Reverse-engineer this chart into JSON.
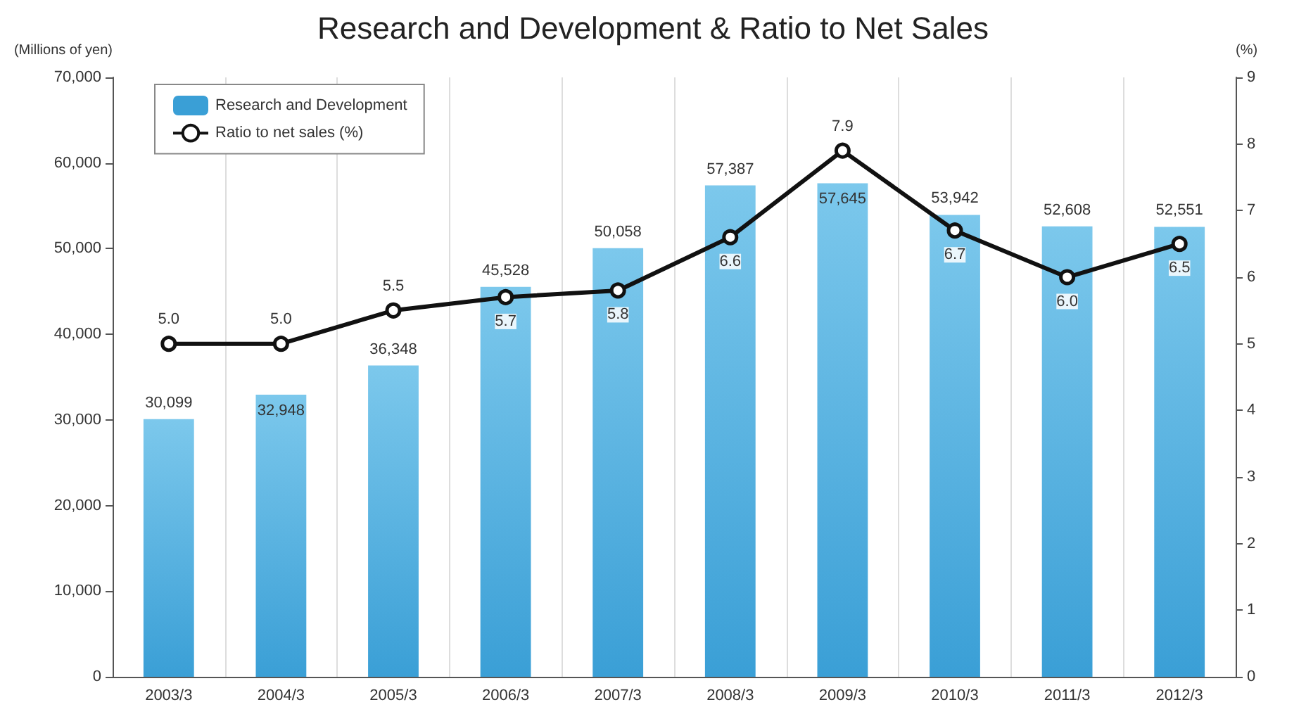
{
  "chart_data": {
    "type": "bar",
    "title": "Research and Development & Ratio to Net Sales",
    "ylabel": "(Millions of yen)",
    "y2label": "(%)",
    "categories": [
      "2003/3",
      "2004/3",
      "2005/3",
      "2006/3",
      "2007/3",
      "2008/3",
      "2009/3",
      "2010/3",
      "2011/3",
      "2012/3"
    ],
    "series": [
      {
        "name": "Research and Development",
        "color": "#3a9fd6",
        "values": [
          30099,
          32948,
          36348,
          45528,
          50058,
          57387,
          57645,
          53942,
          52608,
          52551
        ],
        "value_labels": [
          "30,099",
          "32,948",
          "36,348",
          "45,528",
          "50,058",
          "57,387",
          "57,645",
          "53,942",
          "52,608",
          "52,551"
        ]
      },
      {
        "name": "Ratio to net sales (%)",
        "type": "line",
        "axis": "y2",
        "color": "#111111",
        "values": [
          5.0,
          5.0,
          5.5,
          5.7,
          5.8,
          6.6,
          7.9,
          6.7,
          6.0,
          6.5
        ],
        "value_labels": [
          "5.0",
          "5.0",
          "5.5",
          "5.7",
          "5.8",
          "6.6",
          "7.9",
          "6.7",
          "6.0",
          "6.5"
        ]
      }
    ],
    "ylim": [
      0,
      70000
    ],
    "yticks": [
      0,
      {
        "value": 10000,
        "label": "10,000"
      },
      {
        "value": 20000,
        "label": "20,000"
      },
      {
        "value": 30000,
        "label": "30,000"
      },
      {
        "value": 40000,
        "label": "40,000"
      },
      {
        "value": 50000,
        "label": "50,000"
      },
      {
        "value": 60000,
        "label": "60,000"
      },
      {
        "value": 70000,
        "label": "70,000"
      }
    ],
    "y2lim": [
      0,
      9
    ],
    "y2ticks": [
      0,
      1,
      2,
      3,
      4,
      5,
      6,
      7,
      8,
      9
    ],
    "grid": "x",
    "legend": "top left",
    "marker": "circle"
  }
}
